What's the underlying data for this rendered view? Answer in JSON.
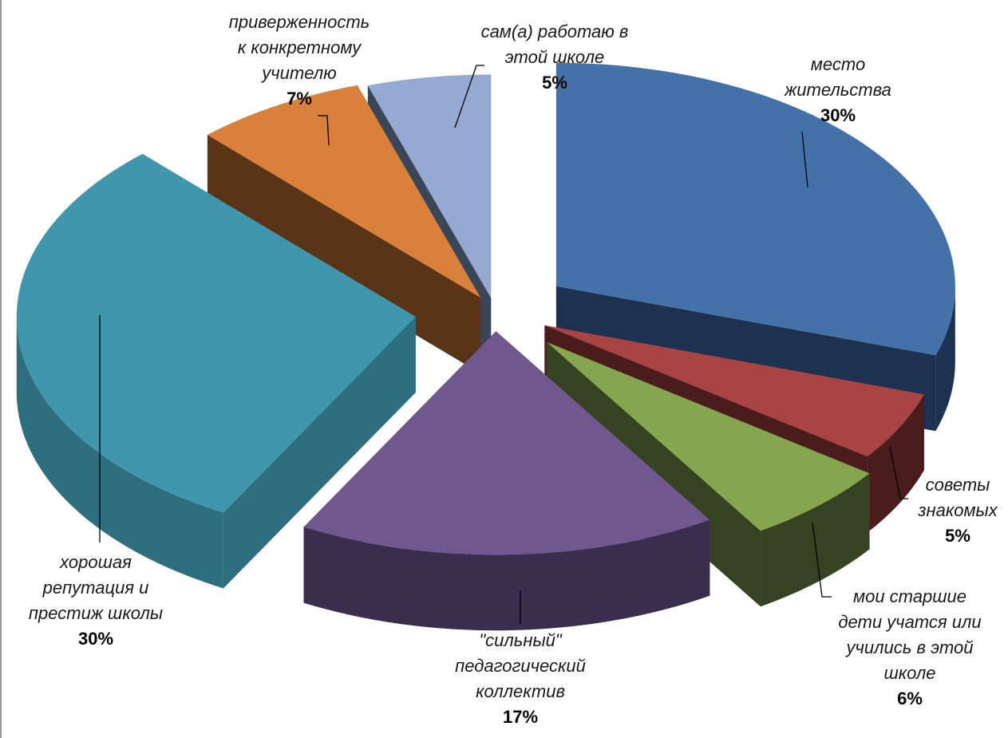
{
  "chart_data": {
    "type": "pie",
    "style": "3d-exploded",
    "title": "",
    "slices": [
      {
        "label": "место жительства",
        "value": 30,
        "display": "30%",
        "color": "#4472A8",
        "side": "#1D3150"
      },
      {
        "label": "советы знакомых",
        "value": 5,
        "display": "5%",
        "color": "#A84444",
        "side": "#4A1C1C"
      },
      {
        "label": "мои старшие дети учатся или учились в этой школе",
        "value": 6,
        "display": "6%",
        "color": "#86A54F",
        "side": "#354322"
      },
      {
        "label": "\"сильный\" педагогический коллектив",
        "value": 17,
        "display": "17%",
        "color": "#70588F",
        "side": "#3A2E4E"
      },
      {
        "label": "хорошая репутация и престиж школы",
        "value": 30,
        "display": "30%",
        "color": "#4096AD",
        "side": "#2E6E7F"
      },
      {
        "label": "приверженность к конкретному учителю",
        "value": 7,
        "display": "7%",
        "color": "#D9803C",
        "side": "#5A3417"
      },
      {
        "label": "сам(а) работаю в этой школе",
        "value": 5,
        "display": "5%",
        "color": "#95A9D2",
        "side": "#3A4558"
      }
    ]
  }
}
